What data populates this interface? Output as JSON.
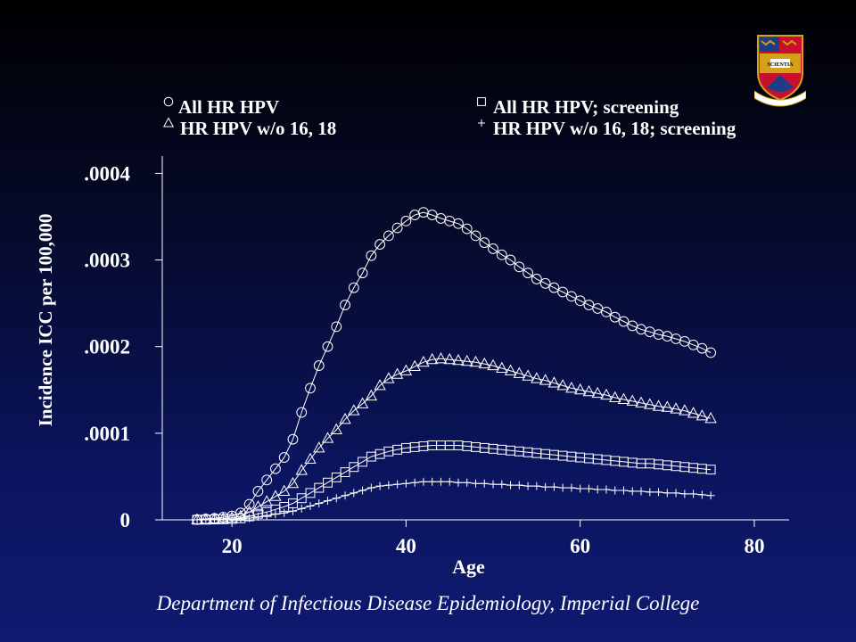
{
  "footer": "Department of Infectious Disease Epidemiology, Imperial College",
  "crest": {
    "icon": "imperial-college-crest-icon",
    "motto": "SCIENTIA"
  },
  "colors": {
    "foreground": "#ffffff",
    "background_top": "#000000",
    "background_bottom": "#0f1a70",
    "crest_gold": "#d4a017",
    "crest_red": "#c8102e",
    "crest_blue": "#1f3c88"
  },
  "chart_data": {
    "type": "line",
    "xlabel": "Age",
    "ylabel": "Incidence ICC per 100,000",
    "xlim": [
      12,
      84
    ],
    "ylim": [
      0,
      0.00042
    ],
    "xticks": [
      20,
      40,
      60,
      80
    ],
    "xtick_labels": [
      "20",
      "40",
      "60",
      "80"
    ],
    "yticks": [
      0,
      0.0001,
      0.0002,
      0.0003,
      0.0004
    ],
    "ytick_labels": [
      "0",
      ".0001",
      ".0002",
      ".0003",
      ".0004"
    ],
    "grid": false,
    "legend_position": "top",
    "x": [
      16,
      17,
      18,
      19,
      20,
      21,
      22,
      23,
      24,
      25,
      26,
      27,
      28,
      29,
      30,
      31,
      32,
      33,
      34,
      35,
      36,
      37,
      38,
      39,
      40,
      41,
      42,
      43,
      44,
      45,
      46,
      47,
      48,
      49,
      50,
      51,
      52,
      53,
      54,
      55,
      56,
      57,
      58,
      59,
      60,
      61,
      62,
      63,
      64,
      65,
      66,
      67,
      68,
      69,
      70,
      71,
      72,
      73,
      74,
      75
    ],
    "series": [
      {
        "name": "All HR HPV",
        "marker": "circle",
        "values": [
          3e-07,
          1e-06,
          1.8e-06,
          3e-06,
          4.5e-06,
          8e-06,
          1.8e-05,
          3.3e-05,
          4.6e-05,
          5.9e-05,
          7.2e-05,
          9.3e-05,
          0.000124,
          0.000152,
          0.000178,
          0.0002,
          0.000223,
          0.000248,
          0.000268,
          0.000285,
          0.000305,
          0.000318,
          0.000328,
          0.000337,
          0.000345,
          0.000352,
          0.000355,
          0.000352,
          0.000348,
          0.000345,
          0.000342,
          0.000336,
          0.000328,
          0.00032,
          0.000313,
          0.000306,
          0.0003,
          0.000292,
          0.000285,
          0.000278,
          0.000273,
          0.000268,
          0.000263,
          0.000258,
          0.000253,
          0.000248,
          0.000244,
          0.00024,
          0.000234,
          0.000229,
          0.000224,
          0.00022,
          0.000217,
          0.000214,
          0.000212,
          0.000209,
          0.000206,
          0.000202,
          0.000198,
          0.000193
        ]
      },
      {
        "name": "HR HPV w/o 16, 18",
        "marker": "triangle",
        "values": [
          1e-07,
          4e-07,
          8e-07,
          1.4e-06,
          2.2e-06,
          4e-06,
          9e-06,
          1.5e-05,
          2.1e-05,
          2.7e-05,
          3.3e-05,
          4.2e-05,
          5.7e-05,
          7e-05,
          8.3e-05,
          9.4e-05,
          0.000104,
          0.000116,
          0.000126,
          0.000134,
          0.000143,
          0.000155,
          0.000163,
          0.000168,
          0.000172,
          0.000177,
          0.000182,
          0.000185,
          0.000186,
          0.000185,
          0.000184,
          0.000183,
          0.000182,
          0.00018,
          0.000178,
          0.000175,
          0.000172,
          0.000169,
          0.000166,
          0.000163,
          0.000161,
          0.000158,
          0.000155,
          0.000152,
          0.00015,
          0.000148,
          0.000146,
          0.000144,
          0.000141,
          0.000139,
          0.000137,
          0.000135,
          0.000133,
          0.000131,
          0.00013,
          0.000128,
          0.000126,
          0.000123,
          0.00012,
          0.000117
        ]
      },
      {
        "name": "All HR HPV; screening",
        "marker": "square",
        "values": [
          1e-07,
          2e-07,
          4e-07,
          6e-07,
          1e-06,
          1.8e-06,
          4e-06,
          7e-06,
          9e-06,
          1.2e-05,
          1.5e-05,
          1.9e-05,
          2.5e-05,
          3.1e-05,
          3.7e-05,
          4.3e-05,
          4.9e-05,
          5.5e-05,
          6.1e-05,
          6.7e-05,
          7.3e-05,
          7.6e-05,
          7.9e-05,
          8.1e-05,
          8.3e-05,
          8.4e-05,
          8.5e-05,
          8.6e-05,
          8.6e-05,
          8.6e-05,
          8.6e-05,
          8.5e-05,
          8.4e-05,
          8.3e-05,
          8.2e-05,
          8.1e-05,
          8e-05,
          7.9e-05,
          7.8e-05,
          7.7e-05,
          7.6e-05,
          7.5e-05,
          7.4e-05,
          7.3e-05,
          7.2e-05,
          7.1e-05,
          7e-05,
          6.9e-05,
          6.8e-05,
          6.7e-05,
          6.6e-05,
          6.5e-05,
          6.5e-05,
          6.4e-05,
          6.3e-05,
          6.2e-05,
          6.1e-05,
          6e-05,
          5.9e-05,
          5.8e-05
        ]
      },
      {
        "name": "HR HPV w/o 16, 18; screening",
        "marker": "plus",
        "values": [
          5e-08,
          1e-07,
          2e-07,
          3e-07,
          5e-07,
          1e-06,
          2e-06,
          3.5e-06,
          5e-06,
          6.5e-06,
          8e-06,
          1e-05,
          1.3e-05,
          1.6e-05,
          1.9e-05,
          2.2e-05,
          2.5e-05,
          2.8e-05,
          3.1e-05,
          3.4e-05,
          3.7e-05,
          3.9e-05,
          4e-05,
          4.1e-05,
          4.2e-05,
          4.3e-05,
          4.4e-05,
          4.4e-05,
          4.4e-05,
          4.4e-05,
          4.3e-05,
          4.3e-05,
          4.2e-05,
          4.2e-05,
          4.1e-05,
          4.1e-05,
          4e-05,
          4e-05,
          3.9e-05,
          3.9e-05,
          3.8e-05,
          3.8e-05,
          3.7e-05,
          3.7e-05,
          3.6e-05,
          3.6e-05,
          3.5e-05,
          3.5e-05,
          3.4e-05,
          3.4e-05,
          3.3e-05,
          3.3e-05,
          3.2e-05,
          3.2e-05,
          3.1e-05,
          3.1e-05,
          3e-05,
          3e-05,
          2.9e-05,
          2.8e-05
        ]
      }
    ]
  }
}
